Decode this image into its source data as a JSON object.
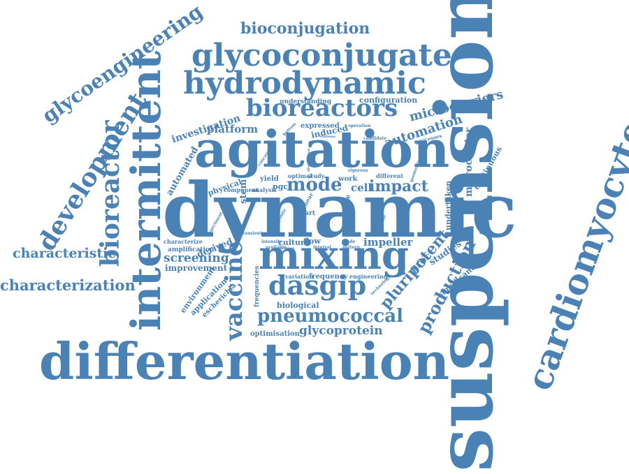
{
  "color": "#4a82b6",
  "words": [
    {
      "id": "suspension",
      "text": "suspension"
    },
    {
      "id": "dynamic",
      "text": "dynamic"
    },
    {
      "id": "differentiation",
      "text": "differentiation"
    },
    {
      "id": "agitation",
      "text": "agitation"
    },
    {
      "id": "intermittent",
      "text": "intermittent"
    },
    {
      "id": "mixing",
      "text": "mixing"
    },
    {
      "id": "cardiomyocyte",
      "text": "cardiomyocyte"
    },
    {
      "id": "glycoconjugate",
      "text": "glycoconjugate"
    },
    {
      "id": "hydrodynamic",
      "text": "hydrodynamic"
    },
    {
      "id": "bioreactors",
      "text": "bioreactors"
    },
    {
      "id": "development",
      "text": "development"
    },
    {
      "id": "bioreactor",
      "text": "bioreactor"
    },
    {
      "id": "glycoengineering",
      "text": "glycoengineering"
    },
    {
      "id": "bioconjugation",
      "text": "bioconjugation"
    },
    {
      "id": "dasgip",
      "text": "dasgip"
    },
    {
      "id": "vaccine",
      "text": "vaccine"
    },
    {
      "id": "pneumococcal",
      "text": "pneumococcal"
    },
    {
      "id": "production",
      "text": "production"
    },
    {
      "id": "pluripotent",
      "text": "pluripotent"
    },
    {
      "id": "characterization",
      "text": "characterization"
    },
    {
      "id": "characteristic",
      "text": "characteristic"
    },
    {
      "id": "microcarriers",
      "text": "microcarriers"
    },
    {
      "id": "automation",
      "text": "automation"
    },
    {
      "id": "mode",
      "text": "mode"
    },
    {
      "id": "impact",
      "text": "impact"
    },
    {
      "id": "glycoprotein",
      "text": "glycoprotein"
    },
    {
      "id": "screening",
      "text": "screening"
    },
    {
      "id": "platform",
      "text": "platform"
    },
    {
      "id": "investigation",
      "text": "investigation"
    },
    {
      "id": "automated",
      "text": "automated"
    },
    {
      "id": "microcarrier",
      "text": "microcarrier"
    },
    {
      "id": "impeller",
      "text": "impeller"
    },
    {
      "id": "studies",
      "text": "studies"
    },
    {
      "id": "stem",
      "text": "stem"
    },
    {
      "id": "proc",
      "text": "proc"
    },
    {
      "id": "cell",
      "text": "cell"
    },
    {
      "id": "improvement",
      "text": "improvement"
    },
    {
      "id": "induced",
      "text": "induced"
    },
    {
      "id": "derived",
      "text": "derived"
    },
    {
      "id": "continuous",
      "text": "continuous"
    },
    {
      "id": "undertaken",
      "text": "undertaken"
    },
    {
      "id": "significant",
      "text": "significant"
    },
    {
      "id": "environment",
      "text": "environment"
    },
    {
      "id": "application",
      "text": "application"
    },
    {
      "id": "escherichia",
      "text": "escherichia"
    },
    {
      "id": "configuration",
      "text": "configuration"
    },
    {
      "id": "understanding",
      "text": "understanding"
    },
    {
      "id": "expressed",
      "text": "expressed"
    },
    {
      "id": "biological",
      "text": "biological"
    },
    {
      "id": "optimisation",
      "text": "optimisation"
    },
    {
      "id": "frequency",
      "text": "frequency"
    },
    {
      "id": "frequencies",
      "text": "frequencies"
    },
    {
      "id": "variation",
      "text": "variation"
    },
    {
      "id": "engineering",
      "text": "engineering"
    },
    {
      "id": "flow",
      "text": "flow"
    },
    {
      "id": "culture",
      "text": "culture"
    },
    {
      "id": "amplification",
      "text": "amplification"
    },
    {
      "id": "characterize",
      "text": "characterize"
    },
    {
      "id": "physical",
      "text": "physical"
    },
    {
      "id": "component",
      "text": "component"
    },
    {
      "id": "analysis",
      "text": "analysis"
    },
    {
      "id": "yield",
      "text": "yield"
    },
    {
      "id": "pgct",
      "text": "pgct"
    },
    {
      "id": "optimal",
      "text": "optimal"
    },
    {
      "id": "study",
      "text": "study"
    },
    {
      "id": "work",
      "text": "work"
    },
    {
      "id": "different",
      "text": "different"
    },
    {
      "id": "time",
      "text": "time"
    },
    {
      "id": "part",
      "text": "part"
    },
    {
      "id": "processes",
      "text": "processes"
    },
    {
      "id": "candidate",
      "text": "candidate"
    },
    {
      "id": "operation",
      "text": "operation"
    },
    {
      "id": "bottom",
      "text": "bottom"
    },
    {
      "id": "concept",
      "text": "concept"
    },
    {
      "id": "intensity",
      "text": "intensity"
    },
    {
      "id": "available",
      "text": "available"
    },
    {
      "id": "interval",
      "text": "interval"
    },
    {
      "id": "technology",
      "text": "technology"
    },
    {
      "id": "rotational",
      "text": "rotational"
    },
    {
      "id": "geometries",
      "text": "geometries"
    },
    {
      "id": "rigorous",
      "text": "rigorous"
    },
    {
      "id": "shear",
      "text": "shear"
    },
    {
      "id": "public",
      "text": "public"
    },
    {
      "id": "blade",
      "text": "blade"
    },
    {
      "id": "pattern",
      "text": "pattern"
    },
    {
      "id": "potential",
      "text": "potential"
    },
    {
      "id": "effective",
      "text": "effective"
    },
    {
      "id": "experiment",
      "text": "experiment"
    },
    {
      "id": "transient",
      "text": "transient"
    },
    {
      "id": "increase",
      "text": "increase"
    },
    {
      "id": "distribution",
      "text": "distribution"
    },
    {
      "id": "systems",
      "text": "systems"
    }
  ]
}
